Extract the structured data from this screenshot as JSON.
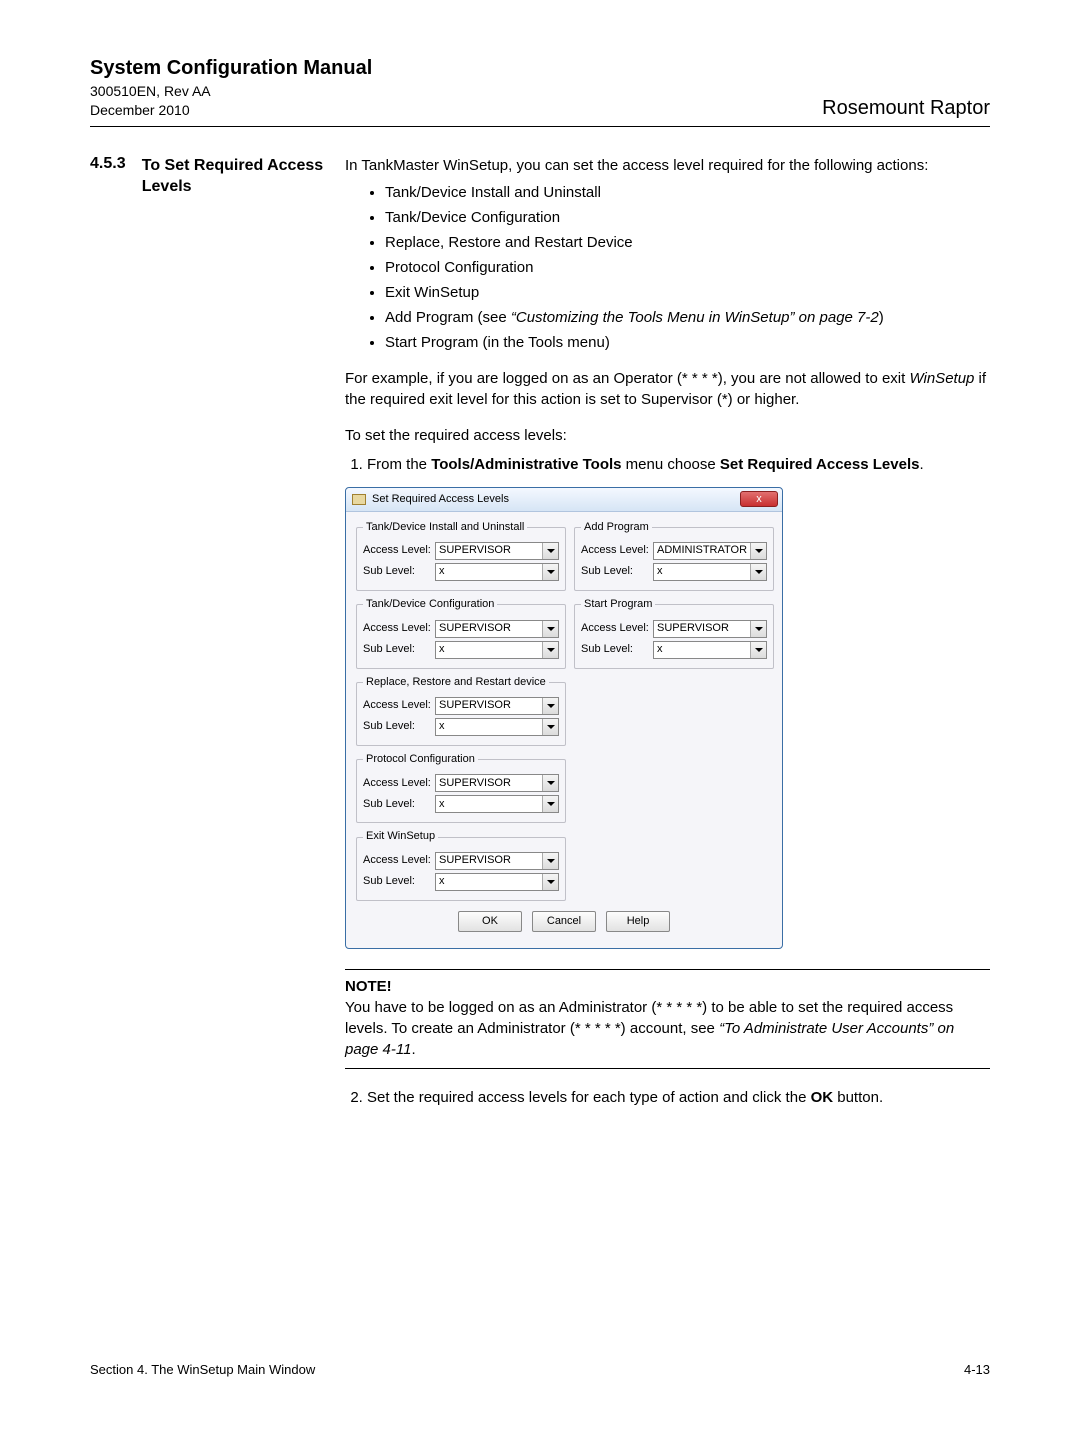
{
  "header": {
    "title": "System Configuration Manual",
    "doc_id": "300510EN, Rev AA",
    "date": "December 2010",
    "product": "Rosemount Raptor"
  },
  "section": {
    "number": "4.5.3",
    "title": "To Set Required Access Levels"
  },
  "intro": "In TankMaster WinSetup, you can set the access level required for the following actions:",
  "bullets": [
    "Tank/Device Install and Uninstall",
    "Tank/Device Configuration",
    "Replace, Restore and Restart Device",
    "Protocol Configuration",
    "Exit WinSetup"
  ],
  "bullet6_a": "Add Program (see ",
  "bullet6_i": "“Customizing the Tools Menu in WinSetup” on page 7-2",
  "bullet6_c": ")",
  "bullet7": "Start Program (in the Tools menu)",
  "para2_a": "For example, if you are logged on as an Operator (* * * *), you are not allowed to exit ",
  "para2_i": "WinSetup",
  "para2_b": " if the required exit level for this action is set to Supervisor (*) or higher.",
  "para3": "To set the required access levels:",
  "step1_a": "From the ",
  "step1_b": "Tools/Administrative Tools",
  "step1_c": " menu choose ",
  "step1_d": "Set Required Access Levels",
  "step1_e": ".",
  "dialog": {
    "title": "Set Required Access Levels",
    "close": "x",
    "labels": {
      "access": "Access Level:",
      "sub": "Sub Level:"
    },
    "left_groups": [
      {
        "legend": "Tank/Device Install and Uninstall",
        "access": "SUPERVISOR",
        "sub": "x"
      },
      {
        "legend": "Tank/Device Configuration",
        "access": "SUPERVISOR",
        "sub": "x"
      },
      {
        "legend": "Replace, Restore and Restart device",
        "access": "SUPERVISOR",
        "sub": "x"
      },
      {
        "legend": "Protocol Configuration",
        "access": "SUPERVISOR",
        "sub": "x"
      },
      {
        "legend": "Exit WinSetup",
        "access": "SUPERVISOR",
        "sub": "x"
      }
    ],
    "right_groups": [
      {
        "legend": "Add Program",
        "access": "ADMINISTRATOR",
        "sub": "x"
      },
      {
        "legend": "Start Program",
        "access": "SUPERVISOR",
        "sub": "x"
      }
    ],
    "buttons": {
      "ok": "OK",
      "cancel": "Cancel",
      "help": "Help"
    }
  },
  "note": {
    "label": "NOTE!",
    "t1": "You have to be logged on as an Administrator (* * * * *) to be able to set the required access levels. To create an Administrator (* * * * *) account, see ",
    "t2": "“To Administrate User Accounts” on page 4-11",
    "t3": "."
  },
  "step2_a": "Set the required access levels for each type of action and click the ",
  "step2_b": "OK",
  "step2_c": " button.",
  "footer": {
    "left": "Section 4. The WinSetup Main Window",
    "right": "4-13"
  }
}
